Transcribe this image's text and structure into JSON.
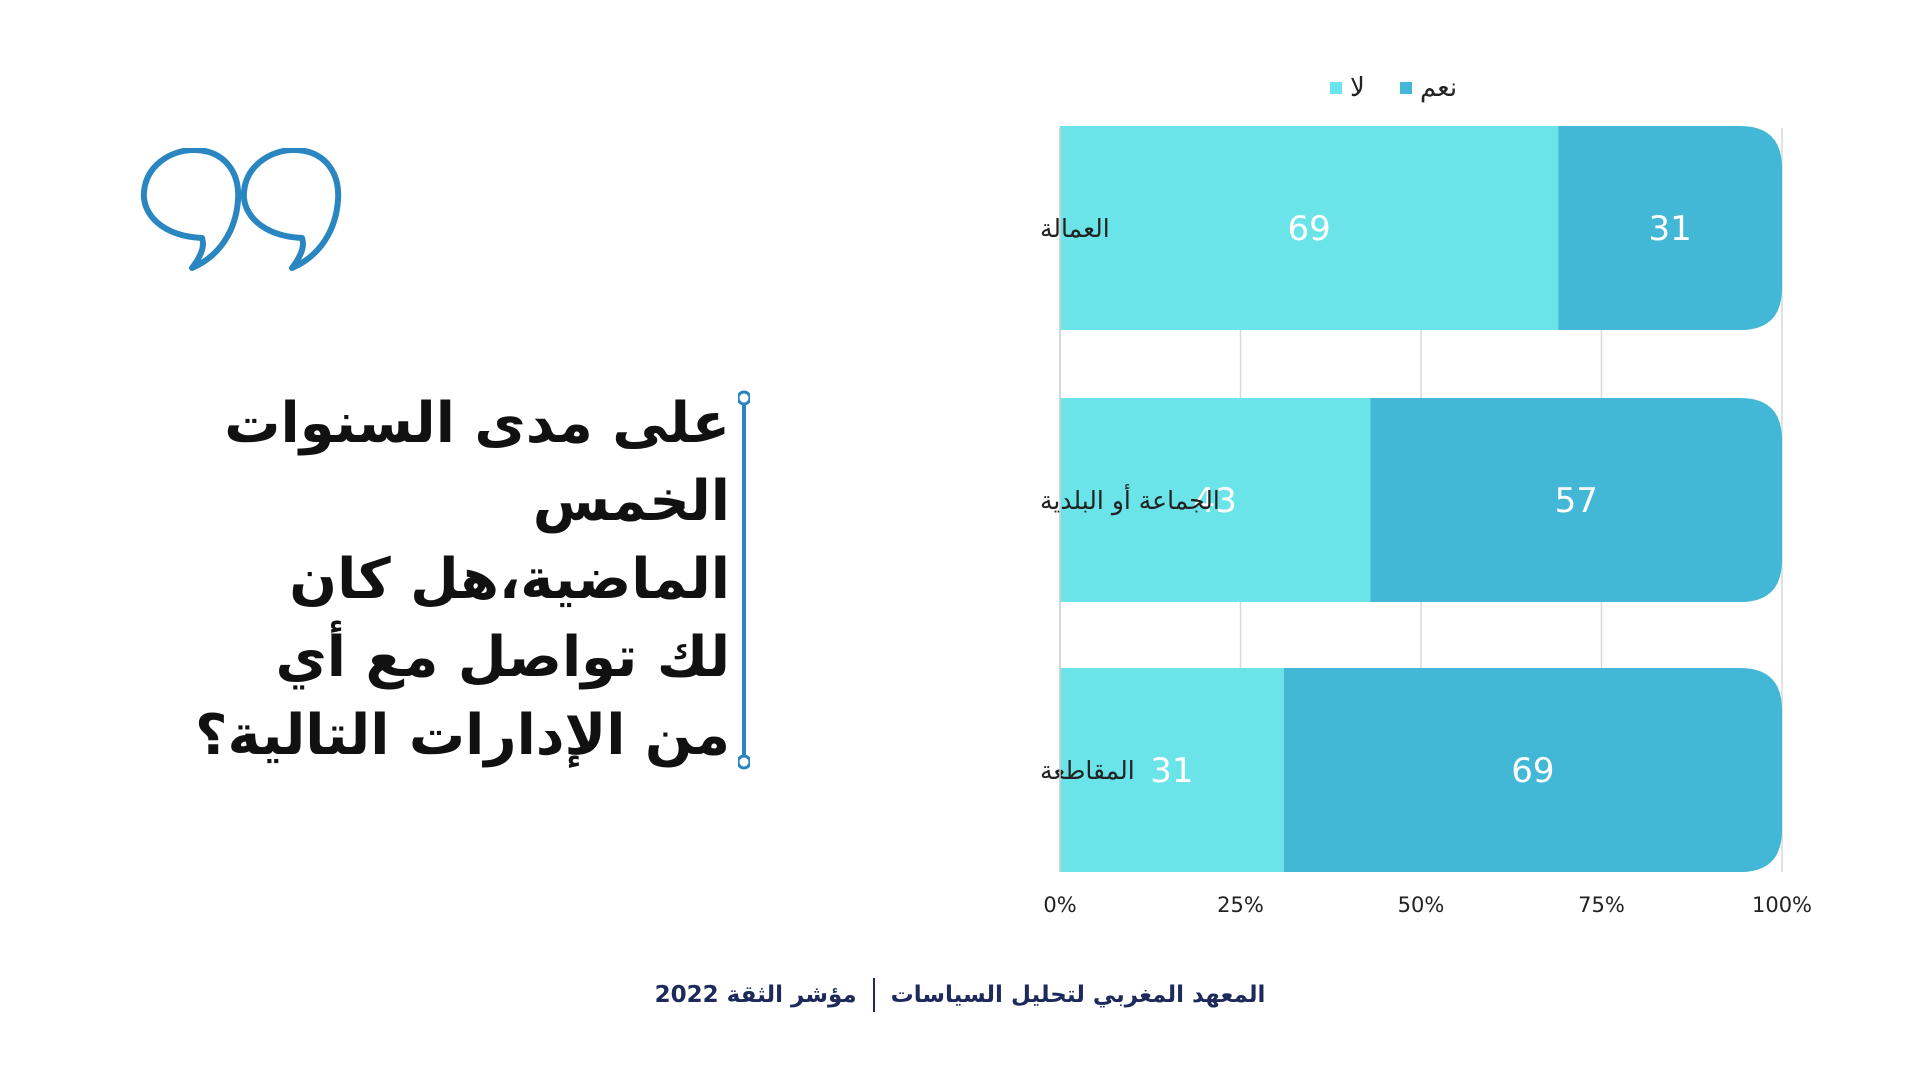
{
  "question": {
    "lines": [
      "على مدى السنوات",
      "الخمس",
      "الماضية،هل كان",
      "لك تواصل مع أي",
      "من الإدارات التالية؟"
    ]
  },
  "footer": {
    "org": "المعهد المغربي لتحليل السياسات",
    "report": "مؤشر الثقة 2022"
  },
  "colors": {
    "no": "#6ae4e8",
    "yes": "#42b7d6",
    "accent": "#2a86c0",
    "text": "#111111",
    "footer": "#1d2a5b"
  },
  "chart_data": {
    "type": "bar",
    "stacked": true,
    "orientation": "horizontal",
    "categories": [
      "العمالة",
      "الجماعة أو البلدية",
      "المقاطعة"
    ],
    "series": [
      {
        "name": "لا",
        "values": [
          69,
          43,
          31
        ],
        "color": "#6ae4e8"
      },
      {
        "name": "نعم",
        "values": [
          31,
          57,
          69
        ],
        "color": "#42b7d6"
      }
    ],
    "xlim": [
      0,
      100
    ],
    "x_ticks": [
      "0%",
      "25%",
      "50%",
      "75%",
      "100%"
    ],
    "legend_position": "top",
    "grid": true
  }
}
